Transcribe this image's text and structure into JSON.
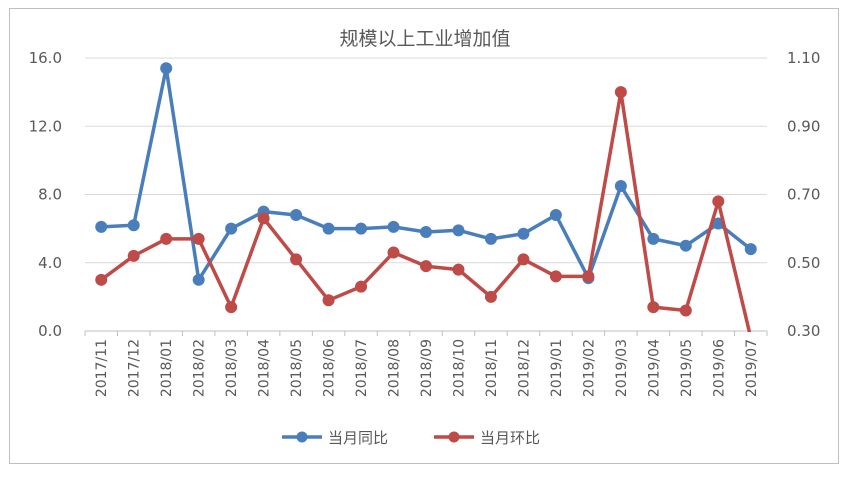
{
  "chart_data": {
    "type": "line",
    "title": "规模以上工业增加值",
    "categories": [
      "2017/11",
      "2017/12",
      "2018/01",
      "2018/02",
      "2018/03",
      "2018/04",
      "2018/05",
      "2018/06",
      "2018/07",
      "2018/08",
      "2018/09",
      "2018/10",
      "2018/11",
      "2018/12",
      "2019/01",
      "2019/02",
      "2019/03",
      "2019/04",
      "2019/05",
      "2019/06",
      "2019/07"
    ],
    "y_left": {
      "range": [
        0,
        16
      ],
      "ticks": [
        "0.0",
        "4.0",
        "8.0",
        "12.0",
        "16.0"
      ],
      "tick_values": [
        0,
        4,
        8,
        12,
        16
      ]
    },
    "y_right": {
      "range": [
        0.3,
        1.1
      ],
      "ticks": [
        "0.30",
        "0.50",
        "0.70",
        "0.90",
        "1.10"
      ],
      "tick_values": [
        0.3,
        0.5,
        0.7,
        0.9,
        1.1
      ]
    },
    "grid": true,
    "legend_position": "bottom",
    "series": [
      {
        "name": "当月同比",
        "axis": "left",
        "color": "#4a7ebb",
        "values": [
          6.1,
          6.2,
          15.4,
          3.0,
          6.0,
          7.0,
          6.8,
          6.0,
          6.0,
          6.1,
          5.8,
          5.9,
          5.4,
          5.7,
          6.8,
          3.1,
          8.5,
          5.4,
          5.0,
          6.3,
          4.8
        ]
      },
      {
        "name": "当月环比",
        "axis": "right",
        "color": "#be4b48",
        "values": [
          0.45,
          0.52,
          0.57,
          0.57,
          0.37,
          0.63,
          0.51,
          0.39,
          0.43,
          0.53,
          0.49,
          0.48,
          0.4,
          0.51,
          0.46,
          0.46,
          1.0,
          0.37,
          0.36,
          0.68,
          0.28
        ]
      }
    ]
  }
}
